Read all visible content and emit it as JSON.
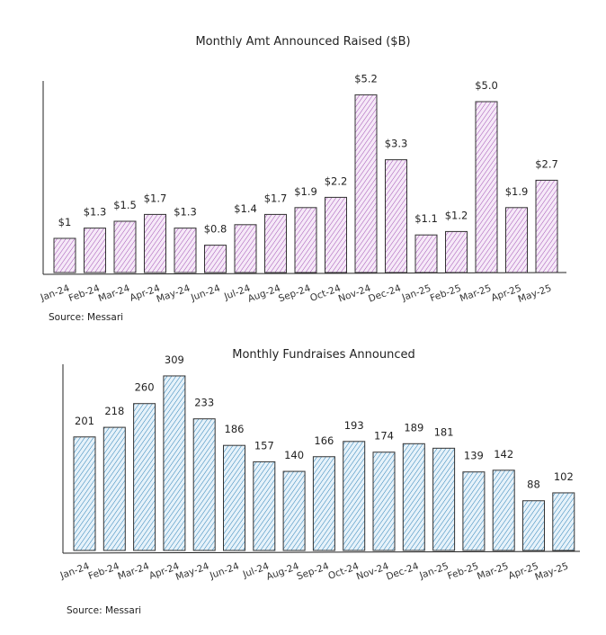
{
  "chart_data": [
    {
      "type": "bar",
      "title": "Monthly Amt Announced Raised ($B)",
      "source": "Source: Messari",
      "categories": [
        "Jan-24",
        "Feb-24",
        "Mar-24",
        "Apr-24",
        "May-24",
        "Jun-24",
        "Jul-24",
        "Aug-24",
        "Sep-24",
        "Oct-24",
        "Nov-24",
        "Dec-24",
        "Jan-25",
        "Feb-25",
        "Mar-25",
        "Apr-25",
        "May-25"
      ],
      "values": [
        1,
        1.3,
        1.5,
        1.7,
        1.3,
        0.8,
        1.4,
        1.7,
        1.9,
        2.2,
        5.2,
        3.3,
        1.1,
        1.2,
        5.0,
        1.9,
        2.7
      ],
      "data_labels": [
        "$1",
        "$1.3",
        "$1.5",
        "$1.7",
        "$1.3",
        "$0.8",
        "$1.4",
        "$1.7",
        "$1.9",
        "$2.2",
        "$5.2",
        "$3.3",
        "$1.1",
        "$1.2",
        "$5.0",
        "$1.9",
        "$2.7"
      ],
      "color": "#c77dd6",
      "grid": false
    },
    {
      "type": "bar",
      "title": "Monthly Fundraises Announced",
      "source": "Source: Messari",
      "categories": [
        "Jan-24",
        "Feb-24",
        "Mar-24",
        "Apr-24",
        "May-24",
        "Jun-24",
        "Jul-24",
        "Aug-24",
        "Sep-24",
        "Oct-24",
        "Nov-24",
        "Dec-24",
        "Jan-25",
        "Feb-25",
        "Mar-25",
        "Apr-25",
        "May-25"
      ],
      "values": [
        201,
        218,
        260,
        309,
        233,
        186,
        157,
        140,
        166,
        193,
        174,
        189,
        181,
        139,
        142,
        88,
        102
      ],
      "data_labels": [
        "201",
        "218",
        "260",
        "309",
        "233",
        "186",
        "157",
        "140",
        "166",
        "193",
        "174",
        "189",
        "181",
        "139",
        "142",
        "88",
        "102"
      ],
      "color": "#3a8fc4",
      "grid": false
    }
  ]
}
